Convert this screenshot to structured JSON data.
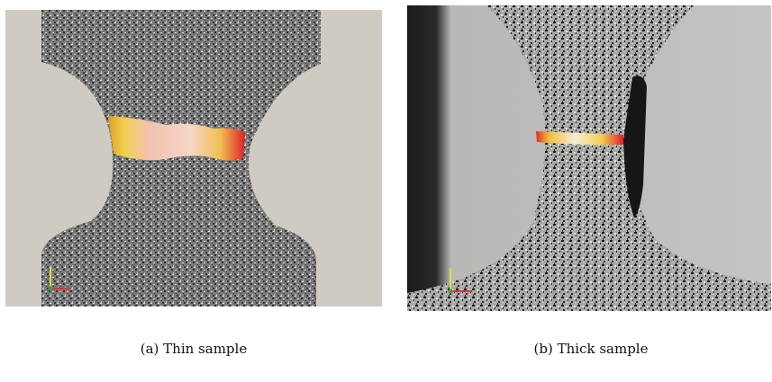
{
  "figure": {
    "subfigures": [
      {
        "id": "a",
        "caption": "(a) Thin sample"
      },
      {
        "id": "b",
        "caption": "(b) Thick sample"
      }
    ]
  },
  "colors": {
    "background_panel": "#cfcbc3",
    "speckle_dark": "#3c3c3c",
    "speckle_light": "#d8d8d8",
    "band_red": "#e0282a",
    "band_yellow": "#f0d040",
    "band_pink": "#f2c6b6",
    "axis_x": "#e03030",
    "axis_y": "#e0e040",
    "axis_z": "#40a040"
  }
}
